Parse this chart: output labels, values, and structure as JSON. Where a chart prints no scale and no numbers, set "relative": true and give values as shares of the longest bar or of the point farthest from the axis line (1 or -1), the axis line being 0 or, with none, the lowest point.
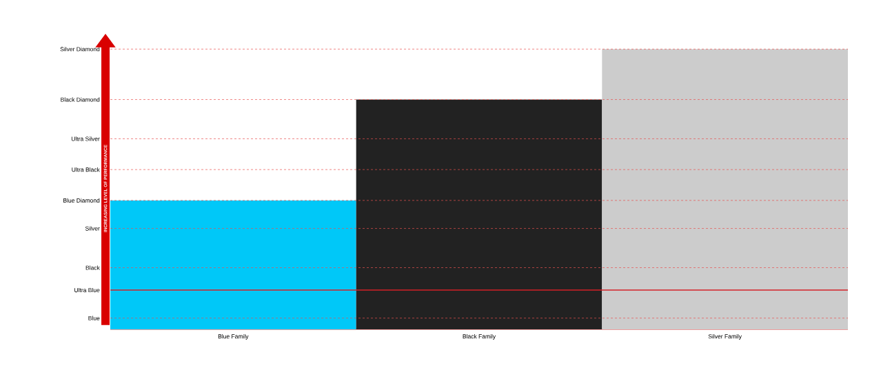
{
  "chart_data": {
    "type": "bar",
    "relative": true,
    "ylabel": "INCREASING LEVEL OF PERFORMANCE",
    "categories": [
      "Blue Family",
      "Black Family",
      "Silver Family"
    ],
    "values": [
      0.46,
      0.82,
      1
    ],
    "colors": [
      "#00c8f8",
      "#222222",
      "#cccccc"
    ],
    "ref_lines": [
      {
        "axis": "y",
        "value": 0.04,
        "label": "Blue",
        "color": "#e8504f",
        "line_style": "dashed"
      },
      {
        "axis": "y",
        "value": 0.14,
        "label": "Ultra Blue",
        "color": "#d42027",
        "line_style": "solid"
      },
      {
        "axis": "y",
        "value": 0.22,
        "label": "Black",
        "color": "#e8504f",
        "line_style": "dashed"
      },
      {
        "axis": "y",
        "value": 0.36,
        "label": "Silver",
        "color": "#e8504f",
        "line_style": "dashed"
      },
      {
        "axis": "y",
        "value": 0.46,
        "label": "Blue Diamond",
        "color": "#e8504f",
        "line_style": "dashed"
      },
      {
        "axis": "y",
        "value": 0.57,
        "label": "Ultra Black",
        "color": "#e8504f",
        "line_style": "dashed"
      },
      {
        "axis": "y",
        "value": 0.68,
        "label": "Ultra Silver",
        "color": "#e8504f",
        "line_style": "dashed"
      },
      {
        "axis": "y",
        "value": 0.82,
        "label": "Black Diamond",
        "color": "#e8504f",
        "line_style": "dashed"
      },
      {
        "axis": "y",
        "value": 1,
        "label": "Silver Diamond",
        "color": "#e8504f",
        "line_style": "dashed"
      }
    ]
  }
}
